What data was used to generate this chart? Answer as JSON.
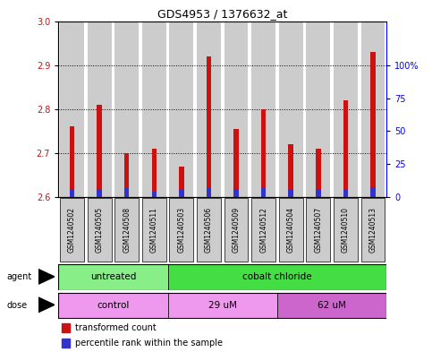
{
  "title": "GDS4953 / 1376632_at",
  "samples": [
    "GSM1240502",
    "GSM1240505",
    "GSM1240508",
    "GSM1240511",
    "GSM1240503",
    "GSM1240506",
    "GSM1240509",
    "GSM1240512",
    "GSM1240504",
    "GSM1240507",
    "GSM1240510",
    "GSM1240513"
  ],
  "transformed_counts": [
    2.76,
    2.81,
    2.7,
    2.71,
    2.67,
    2.92,
    2.755,
    2.8,
    2.72,
    2.71,
    2.82,
    2.93
  ],
  "percentile_base": 2.603,
  "percentile_heights": [
    0.016,
    0.016,
    0.018,
    0.01,
    0.013,
    0.02,
    0.016,
    0.018,
    0.016,
    0.016,
    0.016,
    0.02
  ],
  "bar_bottom": 2.6,
  "ylim_left": [
    2.6,
    3.0
  ],
  "ylim_right": [
    0,
    133.33
  ],
  "yticks_left": [
    2.6,
    2.7,
    2.8,
    2.9,
    3.0
  ],
  "yticks_right": [
    0,
    25,
    50,
    75,
    100
  ],
  "ytick_right_labels": [
    "0",
    "25",
    "50",
    "75",
    "100%"
  ],
  "red_color": "#cc1111",
  "blue_color": "#3333cc",
  "bar_bg_color": "#cccccc",
  "agent_untreated_color": "#88ee88",
  "agent_cobalt_color": "#44dd44",
  "dose_control_color": "#ee99ee",
  "dose_29um_color": "#ee99ee",
  "dose_62um_color": "#cc66cc",
  "agents": [
    {
      "label": "untreated",
      "start": 0,
      "end": 4
    },
    {
      "label": "cobalt chloride",
      "start": 4,
      "end": 12
    }
  ],
  "doses": [
    {
      "label": "control",
      "start": 0,
      "end": 4
    },
    {
      "label": "29 uM",
      "start": 4,
      "end": 8
    },
    {
      "label": "62 uM",
      "start": 8,
      "end": 12
    }
  ],
  "legend_red_label": "transformed count",
  "legend_blue_label": "percentile rank within the sample"
}
